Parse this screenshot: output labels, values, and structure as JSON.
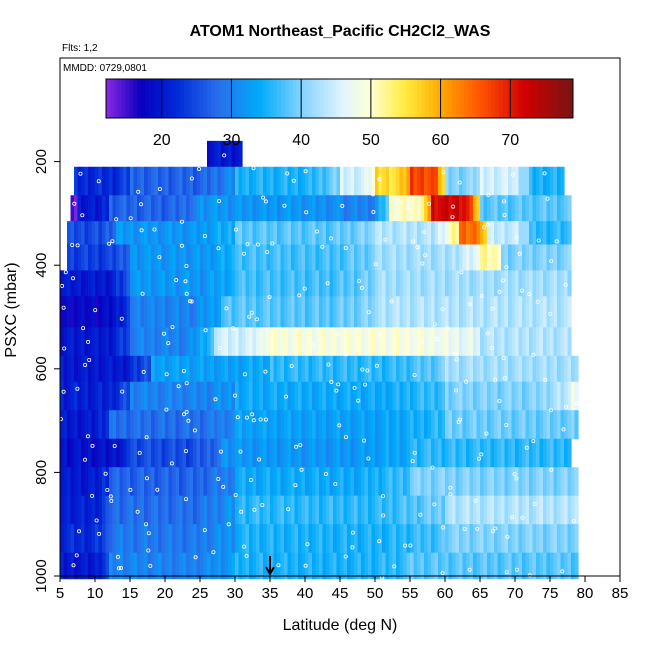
{
  "chart_data": {
    "type": "heatmap",
    "title": "ATOM1 Northeast_Pacific CH2Cl2_WAS",
    "flights_label": "Flts: 1,2",
    "date_label": "MMDD: 0729,0801",
    "xlabel": "Latitude (deg N)",
    "ylabel": "PSXC (mbar)",
    "xlim": [
      5,
      85
    ],
    "ylim": [
      1000,
      0
    ],
    "y_reversed": true,
    "x_ticks": [
      "5",
      "10",
      "15",
      "20",
      "25",
      "30",
      "35",
      "40",
      "45",
      "50",
      "55",
      "60",
      "65",
      "70",
      "75",
      "80",
      "85"
    ],
    "y_ticks": [
      "200",
      "400",
      "600",
      "800",
      "1000"
    ],
    "colorbar": {
      "range": [
        12,
        79
      ],
      "ticks": [
        "20",
        "30",
        "40",
        "50",
        "60",
        "70"
      ],
      "palette": "purple-blue-cyan-white-yellow-orange-red-darkred"
    },
    "arrow_marker_latitude": 35,
    "gridded_bands": [
      {
        "p_top": 160,
        "p_bot": 210,
        "segments": [
          [
            26,
            31,
            20
          ]
        ]
      },
      {
        "p_top": 210,
        "p_bot": 265,
        "segments": [
          [
            7,
            15,
            22
          ],
          [
            15,
            30,
            27
          ],
          [
            30,
            45,
            35
          ],
          [
            45,
            50,
            45
          ],
          [
            50,
            55,
            56
          ],
          [
            55,
            60,
            67
          ],
          [
            60,
            65,
            40
          ],
          [
            65,
            72,
            45
          ],
          [
            72,
            77,
            35
          ]
        ]
      },
      {
        "p_top": 265,
        "p_bot": 315,
        "segments": [
          [
            6.5,
            7.5,
            14
          ],
          [
            7.5,
            12,
            20
          ],
          [
            12,
            25,
            27
          ],
          [
            25,
            45,
            32
          ],
          [
            45,
            52,
            30
          ],
          [
            52,
            58,
            50
          ],
          [
            58,
            65,
            72
          ],
          [
            65,
            78,
            38
          ]
        ]
      },
      {
        "p_top": 315,
        "p_bot": 360,
        "segments": [
          [
            6,
            13,
            25
          ],
          [
            13,
            30,
            32
          ],
          [
            30,
            50,
            38
          ],
          [
            50,
            62,
            43
          ],
          [
            62,
            66,
            64
          ],
          [
            66,
            72,
            44
          ],
          [
            72,
            78,
            36
          ]
        ]
      },
      {
        "p_top": 360,
        "p_bot": 410,
        "segments": [
          [
            6,
            15,
            24
          ],
          [
            15,
            30,
            32
          ],
          [
            30,
            50,
            37
          ],
          [
            50,
            65,
            42
          ],
          [
            65,
            68,
            52
          ],
          [
            68,
            78,
            40
          ]
        ]
      },
      {
        "p_top": 410,
        "p_bot": 460,
        "segments": [
          [
            5,
            15,
            20
          ],
          [
            15,
            30,
            32
          ],
          [
            30,
            50,
            37
          ],
          [
            50,
            78,
            42
          ]
        ]
      },
      {
        "p_top": 460,
        "p_bot": 520,
        "segments": [
          [
            5,
            15,
            18
          ],
          [
            15,
            28,
            30
          ],
          [
            28,
            50,
            38
          ],
          [
            50,
            78,
            43
          ]
        ]
      },
      {
        "p_top": 520,
        "p_bot": 575,
        "segments": [
          [
            5,
            15,
            20
          ],
          [
            15,
            27,
            30
          ],
          [
            27,
            34,
            45
          ],
          [
            34,
            65,
            49
          ],
          [
            65,
            78,
            43
          ]
        ]
      },
      {
        "p_top": 575,
        "p_bot": 625,
        "segments": [
          [
            5,
            18,
            20
          ],
          [
            18,
            35,
            33
          ],
          [
            35,
            60,
            36
          ],
          [
            60,
            79,
            42
          ]
        ]
      },
      {
        "p_top": 625,
        "p_bot": 680,
        "segments": [
          [
            5,
            15,
            21
          ],
          [
            15,
            30,
            30
          ],
          [
            30,
            60,
            34
          ],
          [
            60,
            78,
            40
          ],
          [
            78,
            79,
            48
          ]
        ]
      },
      {
        "p_top": 680,
        "p_bot": 735,
        "segments": [
          [
            5,
            12,
            20
          ],
          [
            12,
            30,
            28
          ],
          [
            30,
            60,
            33
          ],
          [
            60,
            79,
            39
          ]
        ]
      },
      {
        "p_top": 735,
        "p_bot": 790,
        "segments": [
          [
            5,
            15,
            19
          ],
          [
            15,
            28,
            25
          ],
          [
            28,
            55,
            32
          ],
          [
            55,
            78,
            36
          ]
        ]
      },
      {
        "p_top": 790,
        "p_bot": 845,
        "segments": [
          [
            5,
            12,
            20
          ],
          [
            12,
            30,
            27
          ],
          [
            30,
            55,
            34
          ],
          [
            55,
            79,
            40
          ]
        ]
      },
      {
        "p_top": 845,
        "p_bot": 900,
        "segments": [
          [
            5,
            12,
            21
          ],
          [
            12,
            30,
            28
          ],
          [
            30,
            60,
            36
          ],
          [
            60,
            79,
            43
          ]
        ]
      },
      {
        "p_top": 900,
        "p_bot": 955,
        "segments": [
          [
            5,
            12,
            22
          ],
          [
            12,
            30,
            29
          ],
          [
            30,
            60,
            35
          ],
          [
            60,
            79,
            40
          ]
        ]
      },
      {
        "p_top": 955,
        "p_bot": 1005,
        "segments": [
          [
            5,
            12,
            20
          ],
          [
            12,
            30,
            30
          ],
          [
            30,
            55,
            35
          ],
          [
            55,
            79,
            38
          ]
        ]
      }
    ]
  }
}
